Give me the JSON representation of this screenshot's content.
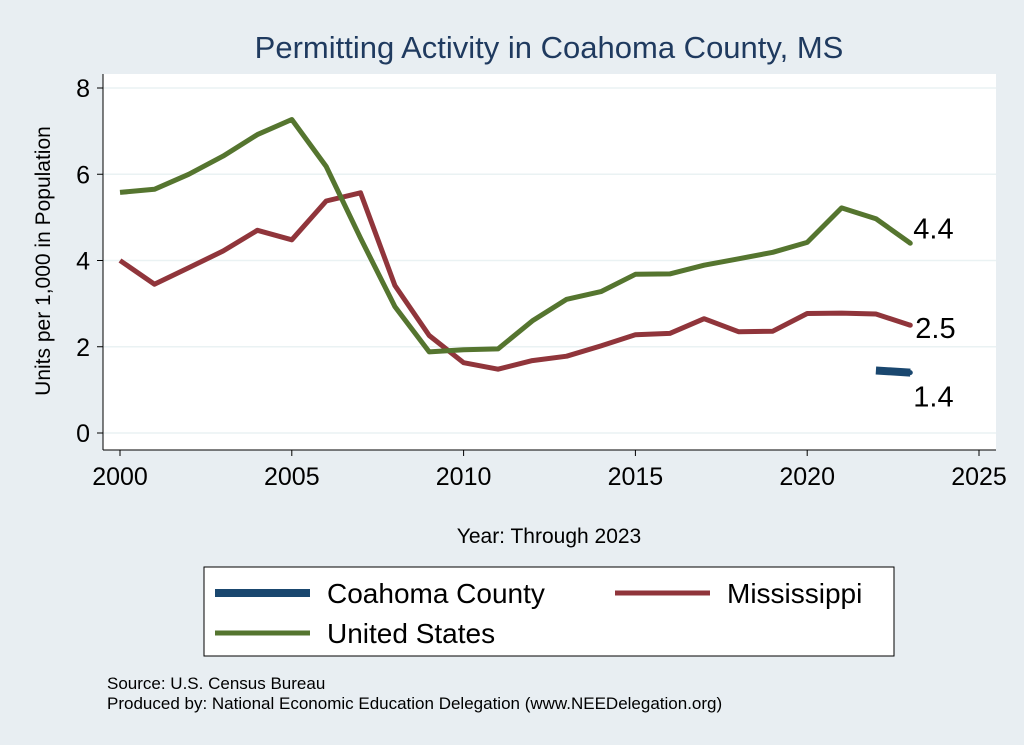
{
  "chart_data": {
    "type": "line",
    "title": "Permitting Activity in Coahoma County, MS",
    "xlabel": "Year: Through 2023",
    "ylabel": "Units per 1,000 in Population",
    "xlim": [
      2000,
      2025
    ],
    "ylim": [
      0,
      8
    ],
    "xticks": [
      2000,
      2005,
      2010,
      2015,
      2020,
      2025
    ],
    "yticks": [
      0,
      2,
      4,
      6,
      8
    ],
    "grid": true,
    "legend_position": "bottom",
    "series": [
      {
        "name": "Coahoma County",
        "color": "#1a476f",
        "x": [
          2022,
          2023
        ],
        "values": [
          1.45,
          1.4
        ],
        "end_label": "1.4"
      },
      {
        "name": "Mississippi",
        "color": "#90353b",
        "x": [
          2000,
          2001,
          2002,
          2003,
          2004,
          2005,
          2006,
          2007,
          2008,
          2009,
          2010,
          2011,
          2012,
          2013,
          2014,
          2015,
          2016,
          2017,
          2018,
          2019,
          2020,
          2021,
          2022,
          2023
        ],
        "values": [
          4.0,
          3.45,
          3.83,
          4.22,
          4.7,
          4.48,
          5.38,
          5.57,
          3.42,
          2.26,
          1.63,
          1.48,
          1.68,
          1.78,
          2.02,
          2.28,
          2.31,
          2.65,
          2.35,
          2.36,
          2.77,
          2.78,
          2.76,
          2.5
        ],
        "end_label": "2.5"
      },
      {
        "name": "United States",
        "color": "#55752f",
        "x": [
          2000,
          2001,
          2002,
          2003,
          2004,
          2005,
          2006,
          2007,
          2008,
          2009,
          2010,
          2011,
          2012,
          2013,
          2014,
          2015,
          2016,
          2017,
          2018,
          2019,
          2020,
          2021,
          2022,
          2023
        ],
        "values": [
          5.58,
          5.65,
          6.0,
          6.42,
          6.92,
          7.27,
          6.18,
          4.52,
          2.93,
          1.88,
          1.93,
          1.95,
          2.6,
          3.1,
          3.28,
          3.68,
          3.69,
          3.89,
          4.04,
          4.19,
          4.42,
          5.22,
          4.97,
          4.4
        ],
        "end_label": "4.4"
      }
    ]
  },
  "legend": {
    "items": [
      "Coahoma County",
      "Mississippi",
      "United States"
    ]
  },
  "notes": {
    "source": "Source: U.S. Census Bureau",
    "produced": "Produced by: National Economic Education Delegation (www.NEEDelegation.org)"
  }
}
